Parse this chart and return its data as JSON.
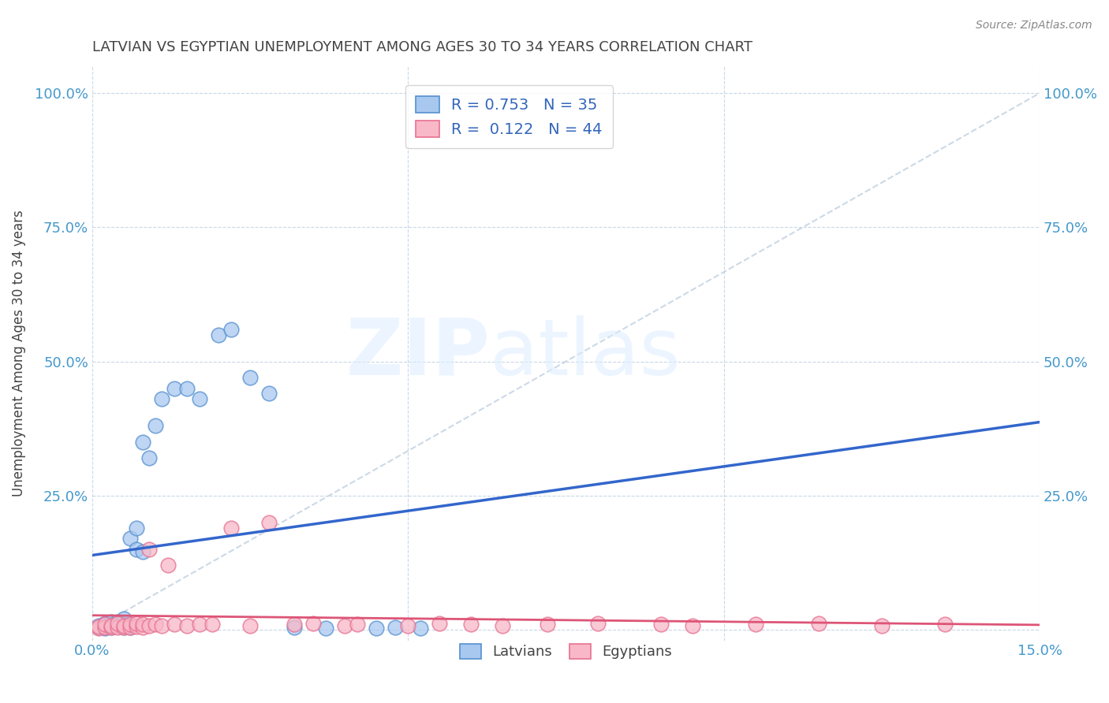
{
  "title": "LATVIAN VS EGYPTIAN UNEMPLOYMENT AMONG AGES 30 TO 34 YEARS CORRELATION CHART",
  "source": "Source: ZipAtlas.com",
  "ylabel": "Unemployment Among Ages 30 to 34 years",
  "xlim": [
    0.0,
    0.15
  ],
  "ylim": [
    -0.02,
    1.05
  ],
  "x_tick_positions": [
    0.0,
    0.05,
    0.1,
    0.15
  ],
  "x_tick_labels": [
    "0.0%",
    "",
    "",
    "15.0%"
  ],
  "y_tick_positions": [
    0.0,
    0.25,
    0.5,
    0.75,
    1.0
  ],
  "y_tick_labels": [
    "",
    "25.0%",
    "50.0%",
    "75.0%",
    "100.0%"
  ],
  "latvian_color": "#a8c8f0",
  "latvian_edge_color": "#5590d0",
  "egyptian_color": "#f8b8c8",
  "egyptian_edge_color": "#e87090",
  "trend_latvian_color": "#3366cc",
  "trend_egyptian_color": "#dd5577",
  "diagonal_color": "#c0d0e0",
  "R_latvian": 0.753,
  "N_latvian": 35,
  "R_egyptian": 0.122,
  "N_egyptian": 44,
  "latvian_x": [
    0.001,
    0.001,
    0.002,
    0.002,
    0.002,
    0.003,
    0.003,
    0.003,
    0.004,
    0.004,
    0.005,
    0.005,
    0.005,
    0.006,
    0.006,
    0.006,
    0.007,
    0.007,
    0.008,
    0.008,
    0.009,
    0.01,
    0.011,
    0.013,
    0.015,
    0.017,
    0.02,
    0.022,
    0.025,
    0.028,
    0.032,
    0.037,
    0.045,
    0.048,
    0.052
  ],
  "latvian_y": [
    0.005,
    0.008,
    0.003,
    0.006,
    0.012,
    0.005,
    0.01,
    0.015,
    0.008,
    0.015,
    0.005,
    0.01,
    0.02,
    0.005,
    0.008,
    0.17,
    0.15,
    0.19,
    0.145,
    0.35,
    0.32,
    0.38,
    0.43,
    0.45,
    0.45,
    0.43,
    0.55,
    0.56,
    0.47,
    0.44,
    0.005,
    0.003,
    0.003,
    0.004,
    0.003
  ],
  "egyptian_x": [
    0.001,
    0.001,
    0.002,
    0.002,
    0.003,
    0.003,
    0.004,
    0.004,
    0.005,
    0.005,
    0.006,
    0.006,
    0.007,
    0.007,
    0.008,
    0.008,
    0.009,
    0.009,
    0.01,
    0.011,
    0.012,
    0.013,
    0.015,
    0.017,
    0.019,
    0.022,
    0.025,
    0.028,
    0.032,
    0.035,
    0.04,
    0.042,
    0.05,
    0.055,
    0.06,
    0.065,
    0.072,
    0.08,
    0.09,
    0.095,
    0.105,
    0.115,
    0.125,
    0.135
  ],
  "egyptian_y": [
    0.003,
    0.006,
    0.005,
    0.01,
    0.004,
    0.008,
    0.005,
    0.012,
    0.004,
    0.008,
    0.005,
    0.01,
    0.006,
    0.012,
    0.005,
    0.01,
    0.15,
    0.008,
    0.01,
    0.008,
    0.12,
    0.01,
    0.008,
    0.01,
    0.01,
    0.19,
    0.008,
    0.2,
    0.01,
    0.012,
    0.008,
    0.01,
    0.008,
    0.012,
    0.01,
    0.008,
    0.01,
    0.012,
    0.01,
    0.008,
    0.01,
    0.012,
    0.008,
    0.01
  ],
  "watermark_zip": "ZIP",
  "watermark_atlas": "atlas",
  "background_color": "#ffffff",
  "grid_color": "#c8d8e8",
  "title_color": "#444444",
  "axis_label_color": "#4499cc",
  "legend_label_color": "#3366bb"
}
